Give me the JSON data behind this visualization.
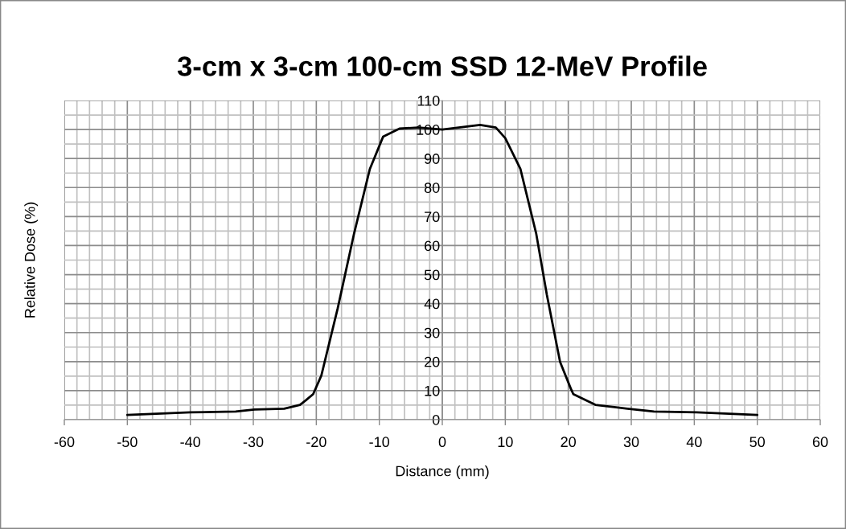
{
  "chart_data": {
    "type": "line",
    "title": "3-cm x 3-cm 100-cm SSD 12-MeV Profile",
    "xlabel": "Distance (mm)",
    "ylabel": "Relative Dose (%)",
    "series": [
      {
        "color": "#000000",
        "x": [
          -50,
          -40,
          -32.8,
          -29.8,
          -25.1,
          -22.6,
          -21.7,
          -20.5,
          -19.2,
          -16.6,
          -15.3,
          -14.0,
          -11.5,
          -9.4,
          -6.8,
          -3.8,
          0,
          6.0,
          8.5,
          10.0,
          12.4,
          14.9,
          15.8,
          16.6,
          18.7,
          20.4,
          20.8,
          24.3,
          29.4,
          33.6,
          40.4,
          50
        ],
        "values": [
          1.6,
          2.5,
          2.8,
          3.5,
          3.8,
          5.1,
          6.6,
          8.8,
          15.2,
          38.4,
          51.3,
          64.2,
          86.4,
          97.5,
          100.3,
          100.7,
          100,
          101.6,
          100.7,
          97,
          86.4,
          64.2,
          53,
          43,
          19.9,
          10.7,
          8.8,
          5.1,
          3.8,
          2.8,
          2.5,
          1.6
        ]
      }
    ],
    "xlim": [
      -60,
      60
    ],
    "xticks": [
      -60,
      -50,
      -40,
      -30,
      -20,
      -10,
      0,
      10,
      20,
      30,
      40,
      50,
      60
    ],
    "ylim": [
      0,
      110
    ],
    "yticks": [
      0,
      10,
      20,
      30,
      40,
      50,
      60,
      70,
      80,
      90,
      100,
      110
    ],
    "grid": true,
    "marker": "none",
    "line_style": "solid",
    "legend": false
  }
}
